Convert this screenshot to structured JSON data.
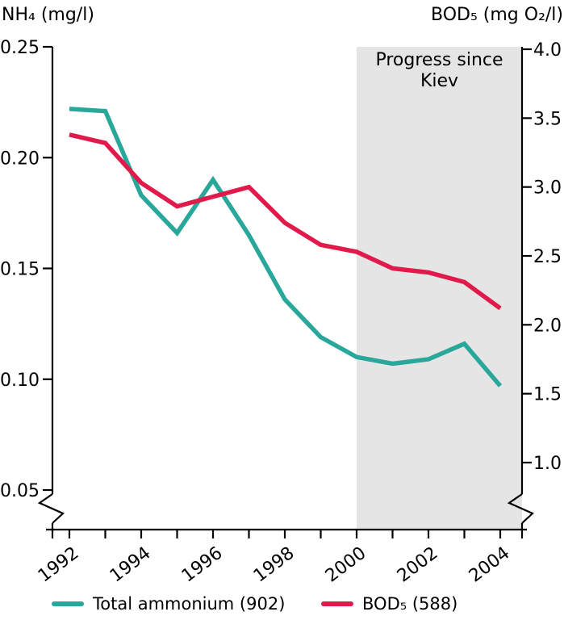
{
  "chart_data": {
    "type": "line",
    "x": [
      1992,
      1993,
      1994,
      1995,
      1996,
      1997,
      1998,
      1999,
      2000,
      2001,
      2002,
      2003,
      2004
    ],
    "x_tick_label_years": [
      1992,
      1994,
      1996,
      1998,
      2000,
      2002,
      2004
    ],
    "left_axis": {
      "title": "NH₄ (mg/l)",
      "tick_labels": [
        "0.25",
        "0.20",
        "0.15",
        "0.10",
        "0.05"
      ],
      "max": 0.25,
      "min": 0.05,
      "axis_break": true
    },
    "right_axis": {
      "title": "BOD₅ (mg O₂/l)",
      "tick_labels": [
        "4.0",
        "3.5",
        "3.0",
        "2.5",
        "2.0",
        "1.5",
        "1.0"
      ],
      "max": 4.0,
      "min": 1.0,
      "axis_break": true
    },
    "series": [
      {
        "name": "Total ammonium (902)",
        "axis": "left",
        "color": "#2AA79B",
        "values": [
          0.222,
          0.221,
          0.183,
          0.166,
          0.19,
          0.165,
          0.136,
          0.119,
          0.11,
          0.107,
          0.109,
          0.116,
          0.097
        ]
      },
      {
        "name": "BOD₅ (588)",
        "axis": "right",
        "color": "#E01A4B",
        "values": [
          3.38,
          3.32,
          3.03,
          2.86,
          2.93,
          3.0,
          2.74,
          2.58,
          2.53,
          2.41,
          2.38,
          2.31,
          2.12
        ]
      }
    ],
    "shaded_region": {
      "from_year": 2000,
      "label": "Progress since Kiev",
      "color": "#E5E5E5"
    },
    "legend": {
      "position": "bottom",
      "items": [
        "Total ammonium (902)",
        "BOD₅ (588)"
      ]
    },
    "axis_color": "#000000",
    "grid": false
  }
}
